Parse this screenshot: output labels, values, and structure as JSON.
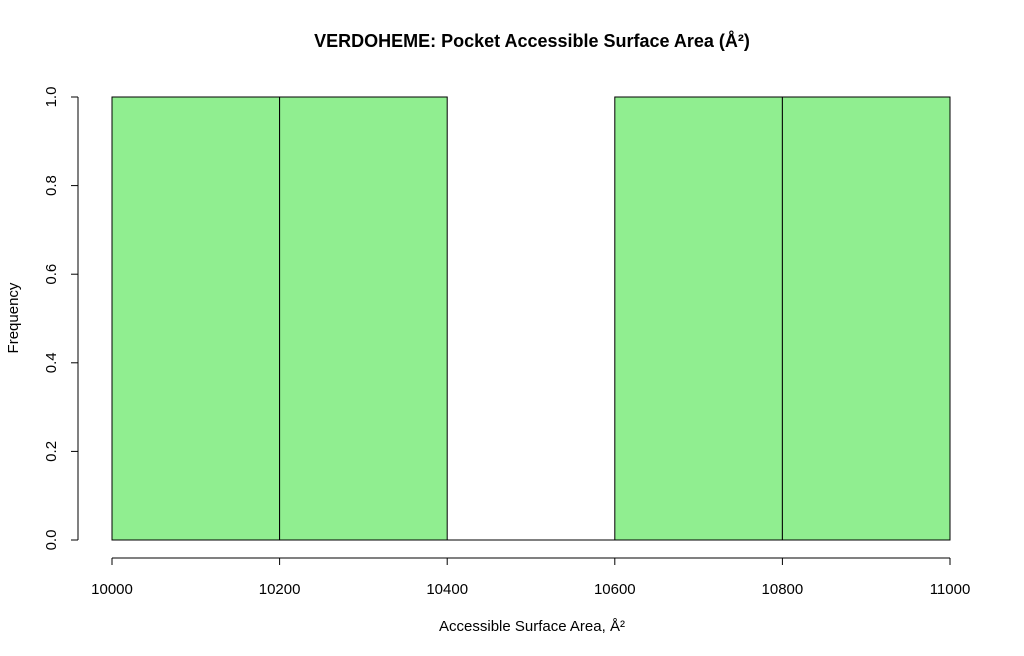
{
  "chart_data": {
    "type": "bar",
    "title": "VERDOHEME: Pocket Accessible Surface Area (Å²)",
    "xlabel": "Accessible Surface Area, Å²",
    "ylabel": "Frequency",
    "bins": [
      {
        "start": 10000,
        "end": 10200,
        "count": 1
      },
      {
        "start": 10200,
        "end": 10400,
        "count": 1
      },
      {
        "start": 10400,
        "end": 10600,
        "count": 0
      },
      {
        "start": 10600,
        "end": 10800,
        "count": 1
      },
      {
        "start": 10800,
        "end": 11000,
        "count": 1
      }
    ],
    "xlim": [
      10000,
      11000
    ],
    "ylim": [
      0,
      1
    ],
    "x_ticks": [
      10000,
      10200,
      10400,
      10600,
      10800,
      11000
    ],
    "y_ticks": [
      "0.0",
      "0.2",
      "0.4",
      "0.6",
      "0.8",
      "1.0"
    ],
    "bar_color": "#90EE90",
    "grid": false,
    "legend": "none"
  }
}
